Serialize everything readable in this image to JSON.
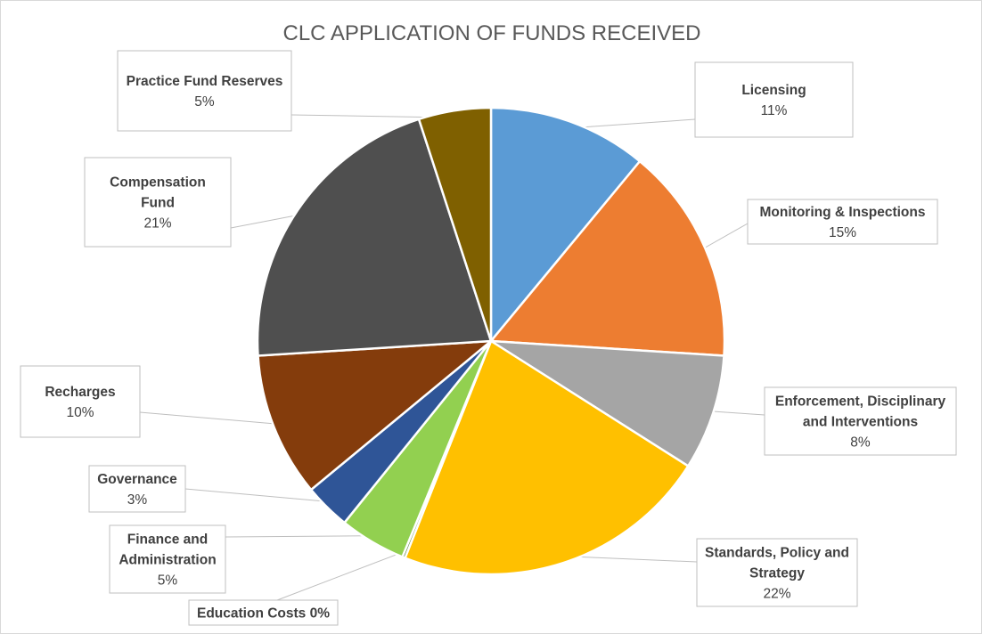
{
  "chart_data": {
    "type": "pie",
    "title": "CLC APPLICATION OF FUNDS RECEIVED",
    "slices": [
      {
        "label_lines": [
          "Licensing"
        ],
        "percent_label": "11%",
        "value": 11,
        "color": "#5b9bd5",
        "label_style": "stacked"
      },
      {
        "label_lines": [
          "Monitoring & Inspections"
        ],
        "percent_label": "15%",
        "value": 15,
        "color": "#ed7d31",
        "label_style": "stacked"
      },
      {
        "label_lines": [
          "Enforcement, Disciplinary",
          "and Interventions"
        ],
        "percent_label": "8%",
        "value": 8,
        "color": "#a5a5a5",
        "label_style": "stacked"
      },
      {
        "label_lines": [
          "Standards, Policy and",
          "Strategy"
        ],
        "percent_label": "22%",
        "value": 22,
        "color": "#ffc000",
        "label_style": "stacked"
      },
      {
        "label_lines": [
          "Education Costs"
        ],
        "percent_label": "0%",
        "value": 0.2,
        "color": "#548235",
        "label_style": "inline"
      },
      {
        "label_lines": [
          "Finance and",
          "Administration"
        ],
        "percent_label": "5%",
        "value": 4.6,
        "color": "#92d050",
        "label_style": "stacked"
      },
      {
        "label_lines": [
          "Governance"
        ],
        "percent_label": "3%",
        "value": 3.2,
        "color": "#2f5597",
        "label_style": "stacked"
      },
      {
        "label_lines": [
          "Recharges"
        ],
        "percent_label": "10%",
        "value": 10,
        "color": "#843c0c",
        "label_style": "stacked"
      },
      {
        "label_lines": [
          "Compensation",
          "Fund"
        ],
        "percent_label": "21%",
        "value": 21,
        "color": "#4f4f4f",
        "label_style": "stacked"
      },
      {
        "label_lines": [
          "Practice Fund Reserves"
        ],
        "percent_label": "5%",
        "value": 5,
        "color": "#7f6000",
        "label_style": "stacked"
      }
    ]
  }
}
